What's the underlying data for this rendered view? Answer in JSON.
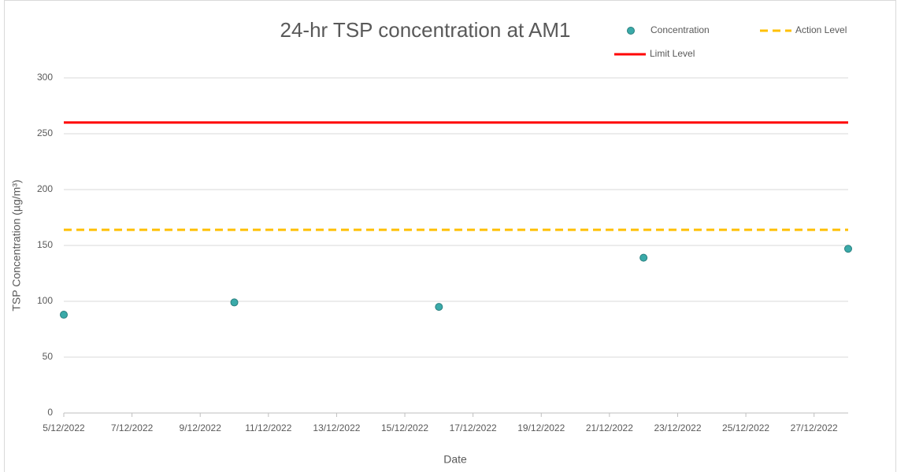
{
  "chart_data": {
    "type": "scatter",
    "title": "24-hr TSP concentration at AM1",
    "xlabel": "Date",
    "ylabel": "TSP Concentration (µg/m³)",
    "xlim": [
      "2022-12-05",
      "2022-12-28"
    ],
    "xticks": [
      {
        "value": "2022-12-05",
        "label": "5/12/2022"
      },
      {
        "value": "2022-12-07",
        "label": "7/12/2022"
      },
      {
        "value": "2022-12-09",
        "label": "9/12/2022"
      },
      {
        "value": "2022-12-11",
        "label": "11/12/2022"
      },
      {
        "value": "2022-12-13",
        "label": "13/12/2022"
      },
      {
        "value": "2022-12-15",
        "label": "15/12/2022"
      },
      {
        "value": "2022-12-17",
        "label": "17/12/2022"
      },
      {
        "value": "2022-12-19",
        "label": "19/12/2022"
      },
      {
        "value": "2022-12-21",
        "label": "21/12/2022"
      },
      {
        "value": "2022-12-23",
        "label": "23/12/2022"
      },
      {
        "value": "2022-12-25",
        "label": "25/12/2022"
      },
      {
        "value": "2022-12-27",
        "label": "27/12/2022"
      }
    ],
    "ylim": [
      0,
      300
    ],
    "yticks": [
      0,
      50,
      100,
      150,
      200,
      250,
      300
    ],
    "grid": true,
    "series": [
      {
        "name": "Concentration",
        "color": "#3aaaa9",
        "style": "marker",
        "x": [
          "2022-12-05",
          "2022-12-10",
          "2022-12-16",
          "2022-12-22",
          "2022-12-28"
        ],
        "values": [
          88,
          99,
          95,
          139,
          147
        ]
      },
      {
        "name": "Action Level",
        "color": "#ffc000",
        "style": "dashed",
        "x": [
          "2022-12-05",
          "2022-12-28"
        ],
        "values": [
          164,
          164
        ]
      },
      {
        "name": "Limit Level",
        "color": "#ff0000",
        "style": "solid",
        "x": [
          "2022-12-05",
          "2022-12-28"
        ],
        "values": [
          260,
          260
        ]
      }
    ]
  }
}
